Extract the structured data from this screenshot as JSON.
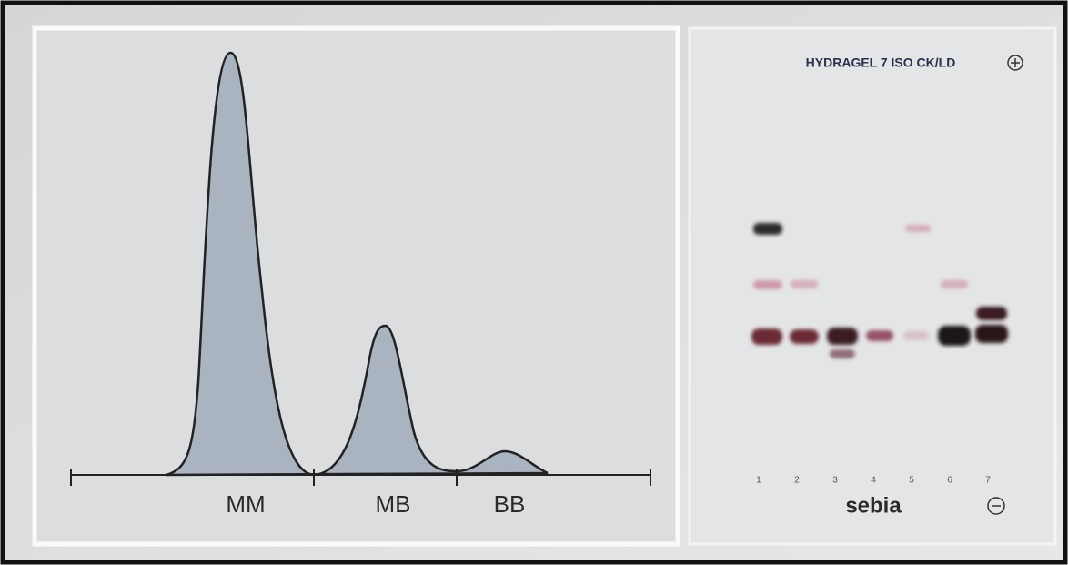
{
  "densitogram": {
    "fractions": [
      "MM",
      "MB",
      "BB"
    ]
  },
  "gel": {
    "title": "HYDRAGEL 7 ISO CK/LD",
    "lanes": [
      "1",
      "2",
      "3",
      "4",
      "5",
      "6",
      "7"
    ],
    "brand": "sebia"
  }
}
